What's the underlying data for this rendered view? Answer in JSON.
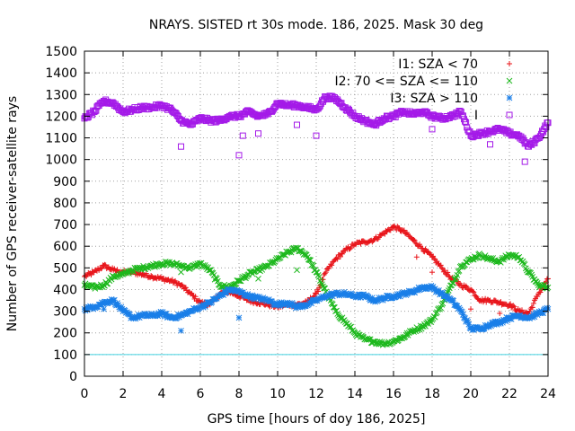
{
  "chart_data": {
    "type": "scatter",
    "title": "NRAYS. SISTED rt 30s mode. 186, 2025. Mask 30 deg",
    "xlabel": "GPS time [hours of doy 186, 2025]",
    "ylabel": "Number of GPS receiver-satellite rays",
    "xlim": [
      0,
      24
    ],
    "ylim": [
      0,
      1500
    ],
    "x_ticks": [
      "0",
      "2",
      "4",
      "6",
      "8",
      "10",
      "12",
      "14",
      "16",
      "18",
      "20",
      "22",
      "24"
    ],
    "y_ticks": [
      "0",
      "100",
      "200",
      "300",
      "400",
      "500",
      "600",
      "700",
      "800",
      "900",
      "1000",
      "1100",
      "1200",
      "1300",
      "1400",
      "1500"
    ],
    "grid": true,
    "legend_position": "top-right",
    "reference_line": {
      "y": 100,
      "color": "#40d0e0"
    },
    "series": [
      {
        "name": "I1: SZA < 70",
        "marker": "+",
        "color": "#e8141a",
        "x": [
          0,
          0.5,
          1,
          1.5,
          2,
          2.5,
          3,
          3.5,
          4,
          4.5,
          5,
          5.5,
          6,
          6.5,
          7,
          7.5,
          8,
          8.5,
          9,
          9.5,
          10,
          10.5,
          11,
          11.5,
          12,
          12.5,
          13,
          13.5,
          14,
          14.5,
          15,
          15.5,
          16,
          16.5,
          17,
          17.5,
          18,
          18.5,
          19,
          19.5,
          20,
          20.5,
          21,
          21.5,
          22,
          22.5,
          23,
          23.5,
          24
        ],
        "y": [
          460,
          480,
          510,
          490,
          480,
          480,
          470,
          460,
          450,
          440,
          420,
          380,
          340,
          330,
          380,
          390,
          370,
          350,
          340,
          330,
          320,
          330,
          330,
          340,
          380,
          480,
          540,
          580,
          610,
          620,
          630,
          660,
          690,
          670,
          630,
          590,
          550,
          500,
          450,
          420,
          400,
          350,
          350,
          340,
          330,
          300,
          290,
          380,
          450
        ]
      },
      {
        "name": "I2: 70 <= SZA <= 110",
        "marker": "x",
        "color": "#1db81d",
        "x": [
          0,
          0.5,
          1,
          1.5,
          2,
          2.5,
          3,
          3.5,
          4,
          4.5,
          5,
          5.5,
          6,
          6.5,
          7,
          7.5,
          8,
          8.5,
          9,
          9.5,
          10,
          10.5,
          11,
          11.5,
          12,
          12.5,
          13,
          13.5,
          14,
          14.5,
          15,
          15.5,
          16,
          16.5,
          17,
          17.5,
          18,
          18.5,
          19,
          19.5,
          20,
          20.5,
          21,
          21.5,
          22,
          22.5,
          23,
          23.5,
          24
        ],
        "y": [
          420,
          410,
          420,
          460,
          470,
          490,
          500,
          510,
          520,
          520,
          510,
          500,
          520,
          490,
          420,
          410,
          440,
          470,
          490,
          510,
          540,
          570,
          590,
          560,
          480,
          390,
          300,
          250,
          200,
          170,
          160,
          150,
          160,
          180,
          210,
          230,
          260,
          330,
          420,
          510,
          540,
          560,
          540,
          530,
          560,
          550,
          480,
          420,
          410
        ]
      },
      {
        "name": "I3: SZA > 110",
        "marker": "*",
        "color": "#1a7fe8",
        "x": [
          0,
          0.5,
          1,
          1.5,
          2,
          2.5,
          3,
          3.5,
          4,
          4.5,
          5,
          5.5,
          6,
          6.5,
          7,
          7.5,
          8,
          8.5,
          9,
          9.5,
          10,
          10.5,
          11,
          11.5,
          12,
          12.5,
          13,
          13.5,
          14,
          14.5,
          15,
          15.5,
          16,
          16.5,
          17,
          17.5,
          18,
          18.5,
          19,
          19.5,
          20,
          20.5,
          21,
          21.5,
          22,
          22.5,
          23,
          23.5,
          24
        ],
        "y": [
          310,
          320,
          340,
          350,
          300,
          270,
          280,
          280,
          290,
          270,
          280,
          300,
          320,
          340,
          370,
          400,
          390,
          370,
          360,
          350,
          330,
          340,
          320,
          330,
          350,
          370,
          380,
          380,
          370,
          370,
          350,
          360,
          370,
          380,
          390,
          410,
          410,
          380,
          350,
          300,
          220,
          220,
          240,
          250,
          270,
          280,
          270,
          290,
          310
        ]
      },
      {
        "name": "I",
        "marker": "square",
        "color": "#a41ae8",
        "x": [
          0,
          0.5,
          1,
          1.5,
          2,
          2.5,
          3,
          3.5,
          4,
          4.5,
          5,
          5.5,
          6,
          6.5,
          7,
          7.5,
          8,
          8.5,
          9,
          9.5,
          10,
          10.5,
          11,
          11.5,
          12,
          12.5,
          13,
          13.5,
          14,
          14.5,
          15,
          15.5,
          16,
          16.5,
          17,
          17.5,
          18,
          18.5,
          19,
          19.5,
          20,
          20.5,
          21,
          21.5,
          22,
          22.5,
          23,
          23.5,
          24
        ],
        "y": [
          1190,
          1220,
          1270,
          1260,
          1220,
          1230,
          1240,
          1240,
          1250,
          1230,
          1180,
          1160,
          1190,
          1180,
          1180,
          1200,
          1200,
          1220,
          1200,
          1210,
          1260,
          1250,
          1250,
          1240,
          1230,
          1290,
          1280,
          1240,
          1200,
          1180,
          1160,
          1190,
          1200,
          1220,
          1210,
          1220,
          1200,
          1190,
          1200,
          1220,
          1110,
          1120,
          1130,
          1140,
          1120,
          1110,
          1060,
          1100,
          1170
        ]
      }
    ],
    "outliers": [
      {
        "series": 3,
        "x": 5.0,
        "y": 1060
      },
      {
        "series": 3,
        "x": 8.0,
        "y": 1020
      },
      {
        "series": 3,
        "x": 8.2,
        "y": 1110
      },
      {
        "series": 3,
        "x": 9.0,
        "y": 1120
      },
      {
        "series": 3,
        "x": 11.0,
        "y": 1160
      },
      {
        "series": 3,
        "x": 12.0,
        "y": 1110
      },
      {
        "series": 3,
        "x": 18.0,
        "y": 1140
      },
      {
        "series": 3,
        "x": 21.0,
        "y": 1070
      },
      {
        "series": 3,
        "x": 22.8,
        "y": 990
      },
      {
        "series": 2,
        "x": 5.0,
        "y": 210
      },
      {
        "series": 2,
        "x": 8.0,
        "y": 270
      },
      {
        "series": 2,
        "x": 1.0,
        "y": 310
      },
      {
        "series": 1,
        "x": 5.0,
        "y": 480
      },
      {
        "series": 1,
        "x": 9.0,
        "y": 450
      },
      {
        "series": 1,
        "x": 11.0,
        "y": 490
      },
      {
        "series": 0,
        "x": 17.2,
        "y": 550
      },
      {
        "series": 0,
        "x": 18.0,
        "y": 480
      },
      {
        "series": 0,
        "x": 20.0,
        "y": 310
      },
      {
        "series": 0,
        "x": 21.5,
        "y": 290
      }
    ]
  }
}
